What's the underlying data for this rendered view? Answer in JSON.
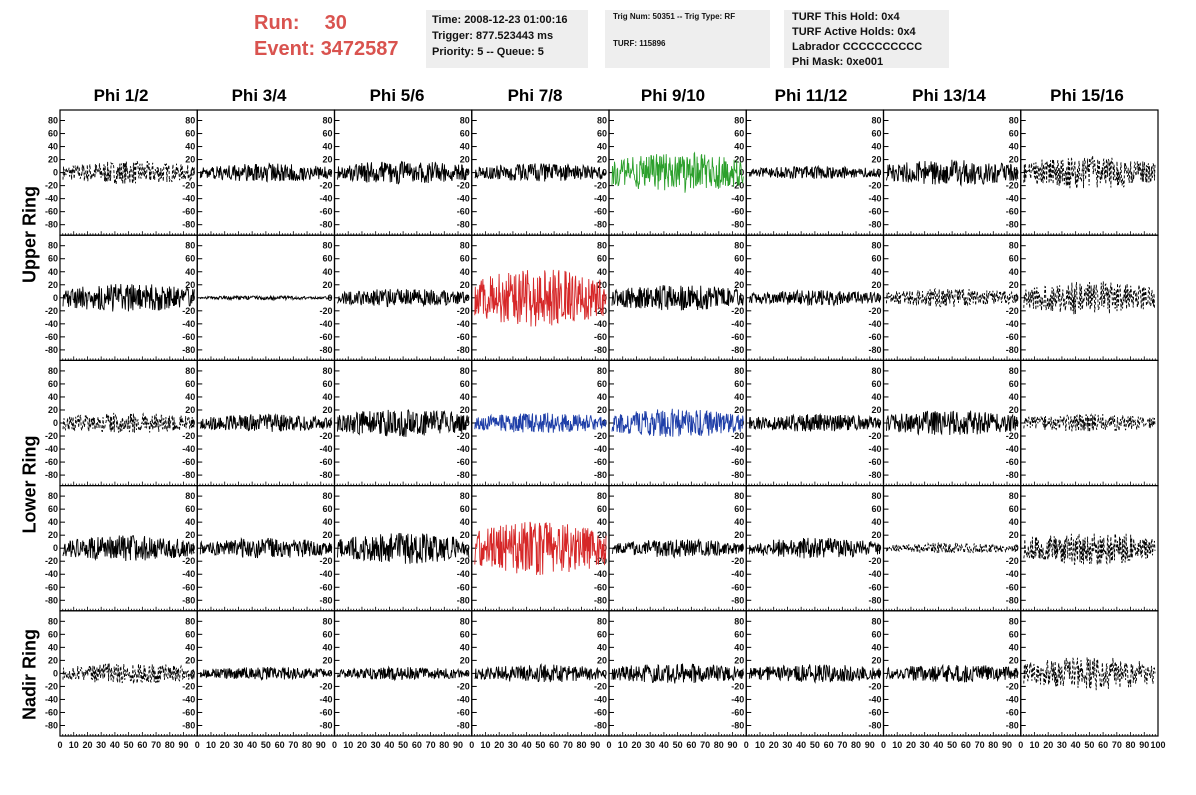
{
  "header": {
    "run_label": "Run:",
    "run_value": "30",
    "event_label": "Event:",
    "event_value": "3472587"
  },
  "time_box": {
    "time": "Time: 2008-12-23 01:00:16",
    "trigger": "Trigger: 877.523443 ms",
    "priority": "Priority: 5 -- Queue: 5"
  },
  "trig_box": {
    "trig": "Trig Num: 50351 -- Trig Type: RF",
    "turf": "TURF: 115896"
  },
  "turf_box": {
    "this_hold": "TURF This Hold: 0x4",
    "active_holds": "TURF Active Holds: 0x4",
    "labrador": "Labrador CCCCCCCCCC",
    "phi_mask": "Phi Mask: 0xe001"
  },
  "phi_labels": [
    "Phi 1/2",
    "Phi 3/4",
    "Phi 5/6",
    "Phi 7/8",
    "Phi 9/10",
    "Phi 11/12",
    "Phi 13/14",
    "Phi 15/16"
  ],
  "ring_labels": [
    "Upper Ring",
    "Lower Ring",
    "Nadir Ring"
  ],
  "y_ticks": [
    "80",
    "60",
    "40",
    "20",
    "0",
    "-20",
    "-40",
    "-60",
    "-80"
  ],
  "x_ticks": [
    "0",
    "10",
    "20",
    "30",
    "40",
    "50",
    "60",
    "70",
    "80",
    "90",
    "100"
  ],
  "colors": {
    "normal": "#000000",
    "green": "#2ca02c",
    "red": "#d62728",
    "blue": "#1f3fa8",
    "header_red": "#d9534f"
  },
  "chart_data": {
    "type": "line",
    "rows": 5,
    "cols": 8,
    "ylim": [
      -90,
      90
    ],
    "xlim": [
      0,
      100
    ],
    "traces": [
      {
        "row": 0,
        "col": 0,
        "amp": 18,
        "style": "dashed",
        "color": "normal"
      },
      {
        "row": 0,
        "col": 1,
        "amp": 14,
        "style": "solid",
        "color": "normal"
      },
      {
        "row": 0,
        "col": 2,
        "amp": 18,
        "style": "solid",
        "color": "normal"
      },
      {
        "row": 0,
        "col": 3,
        "amp": 14,
        "style": "solid",
        "color": "normal"
      },
      {
        "row": 0,
        "col": 4,
        "amp": 32,
        "style": "solid",
        "color": "green"
      },
      {
        "row": 0,
        "col": 5,
        "amp": 10,
        "style": "solid",
        "color": "normal"
      },
      {
        "row": 0,
        "col": 6,
        "amp": 20,
        "style": "solid",
        "color": "normal"
      },
      {
        "row": 0,
        "col": 7,
        "amp": 26,
        "style": "dashed",
        "color": "normal"
      },
      {
        "row": 1,
        "col": 0,
        "amp": 22,
        "style": "solid",
        "color": "normal"
      },
      {
        "row": 1,
        "col": 1,
        "amp": 3,
        "style": "solid",
        "color": "normal"
      },
      {
        "row": 1,
        "col": 2,
        "amp": 14,
        "style": "solid",
        "color": "normal"
      },
      {
        "row": 1,
        "col": 3,
        "amp": 45,
        "style": "solid",
        "color": "red"
      },
      {
        "row": 1,
        "col": 4,
        "amp": 20,
        "style": "solid",
        "color": "normal"
      },
      {
        "row": 1,
        "col": 5,
        "amp": 12,
        "style": "solid",
        "color": "normal"
      },
      {
        "row": 1,
        "col": 6,
        "amp": 14,
        "style": "dashed",
        "color": "normal"
      },
      {
        "row": 1,
        "col": 7,
        "amp": 26,
        "style": "dashed",
        "color": "normal"
      },
      {
        "row": 2,
        "col": 0,
        "amp": 16,
        "style": "dashed",
        "color": "normal"
      },
      {
        "row": 2,
        "col": 1,
        "amp": 14,
        "style": "solid",
        "color": "normal"
      },
      {
        "row": 2,
        "col": 2,
        "amp": 22,
        "style": "solid",
        "color": "normal"
      },
      {
        "row": 2,
        "col": 3,
        "amp": 16,
        "style": "solid",
        "color": "blue"
      },
      {
        "row": 2,
        "col": 4,
        "amp": 22,
        "style": "solid",
        "color": "blue"
      },
      {
        "row": 2,
        "col": 5,
        "amp": 14,
        "style": "solid",
        "color": "normal"
      },
      {
        "row": 2,
        "col": 6,
        "amp": 20,
        "style": "solid",
        "color": "normal"
      },
      {
        "row": 2,
        "col": 7,
        "amp": 14,
        "style": "dashed",
        "color": "normal"
      },
      {
        "row": 3,
        "col": 0,
        "amp": 20,
        "style": "solid",
        "color": "normal"
      },
      {
        "row": 3,
        "col": 1,
        "amp": 16,
        "style": "solid",
        "color": "normal"
      },
      {
        "row": 3,
        "col": 2,
        "amp": 24,
        "style": "solid",
        "color": "normal"
      },
      {
        "row": 3,
        "col": 3,
        "amp": 42,
        "style": "solid",
        "color": "red"
      },
      {
        "row": 3,
        "col": 4,
        "amp": 14,
        "style": "solid",
        "color": "normal"
      },
      {
        "row": 3,
        "col": 5,
        "amp": 16,
        "style": "solid",
        "color": "normal"
      },
      {
        "row": 3,
        "col": 6,
        "amp": 8,
        "style": "dashed",
        "color": "normal"
      },
      {
        "row": 3,
        "col": 7,
        "amp": 26,
        "style": "dashed",
        "color": "normal"
      },
      {
        "row": 4,
        "col": 0,
        "amp": 16,
        "style": "dashed",
        "color": "normal"
      },
      {
        "row": 4,
        "col": 1,
        "amp": 10,
        "style": "solid",
        "color": "normal"
      },
      {
        "row": 4,
        "col": 2,
        "amp": 10,
        "style": "solid",
        "color": "normal"
      },
      {
        "row": 4,
        "col": 3,
        "amp": 14,
        "style": "solid",
        "color": "normal"
      },
      {
        "row": 4,
        "col": 4,
        "amp": 16,
        "style": "solid",
        "color": "normal"
      },
      {
        "row": 4,
        "col": 5,
        "amp": 14,
        "style": "solid",
        "color": "normal"
      },
      {
        "row": 4,
        "col": 6,
        "amp": 14,
        "style": "solid",
        "color": "normal"
      },
      {
        "row": 4,
        "col": 7,
        "amp": 26,
        "style": "dashed",
        "color": "normal"
      }
    ]
  }
}
